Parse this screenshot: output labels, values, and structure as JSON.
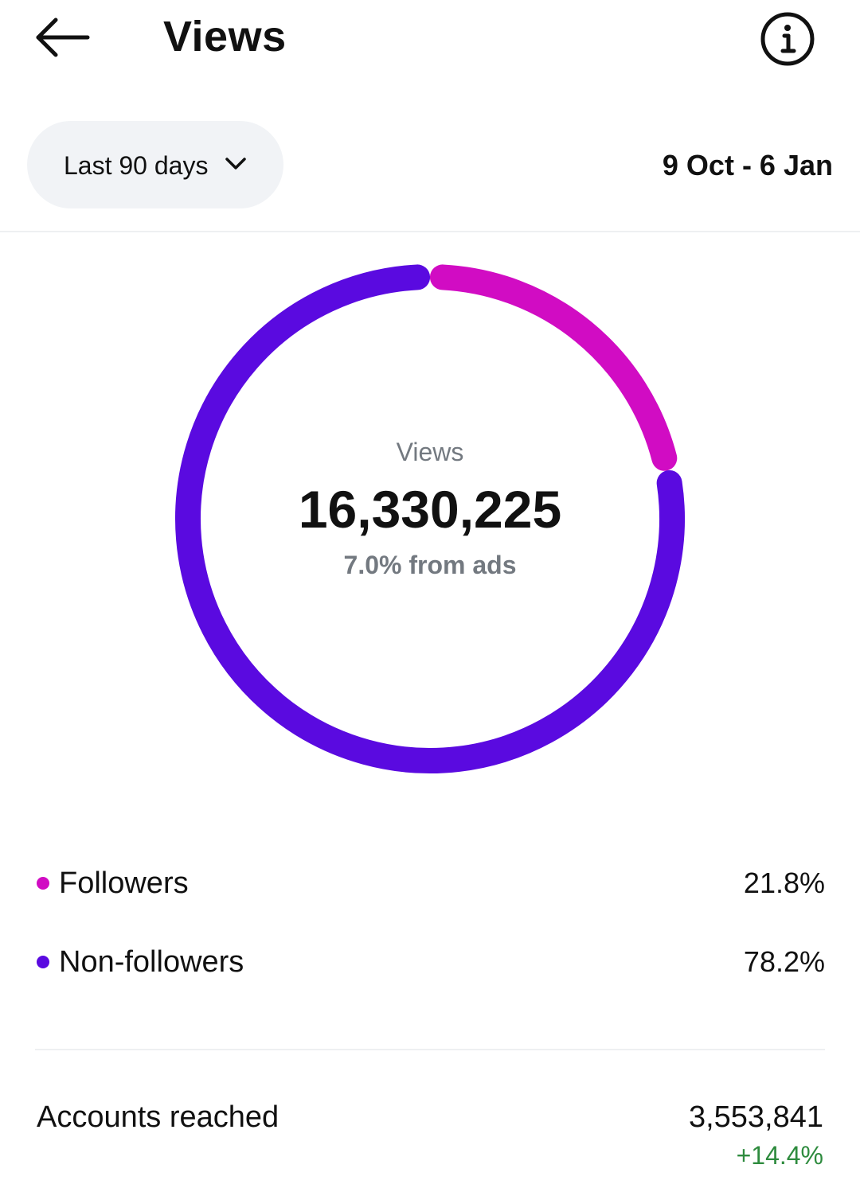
{
  "header": {
    "title": "Views",
    "back_icon": "arrow-left-icon",
    "info_icon": "info-circle-icon"
  },
  "filter": {
    "range_label": "Last 90 days",
    "chevron_icon": "chevron-down-icon",
    "date_range": "9 Oct - 6 Jan"
  },
  "summary": {
    "center_label": "Views",
    "total": "16,330,225",
    "ads_note": "7.0% from ads"
  },
  "chart_data": {
    "type": "pie",
    "categories": [
      "Followers",
      "Non-followers"
    ],
    "values": [
      21.8,
      78.2
    ],
    "colors": [
      "#d10cc3",
      "#5a0ae0"
    ]
  },
  "legend": [
    {
      "name": "Followers",
      "value": "21.8%",
      "color": "#d10cc3"
    },
    {
      "name": "Non-followers",
      "value": "78.2%",
      "color": "#5a0ae0"
    }
  ],
  "reach": {
    "label": "Accounts reached",
    "value": "3,553,841",
    "change": "+14.4%"
  }
}
